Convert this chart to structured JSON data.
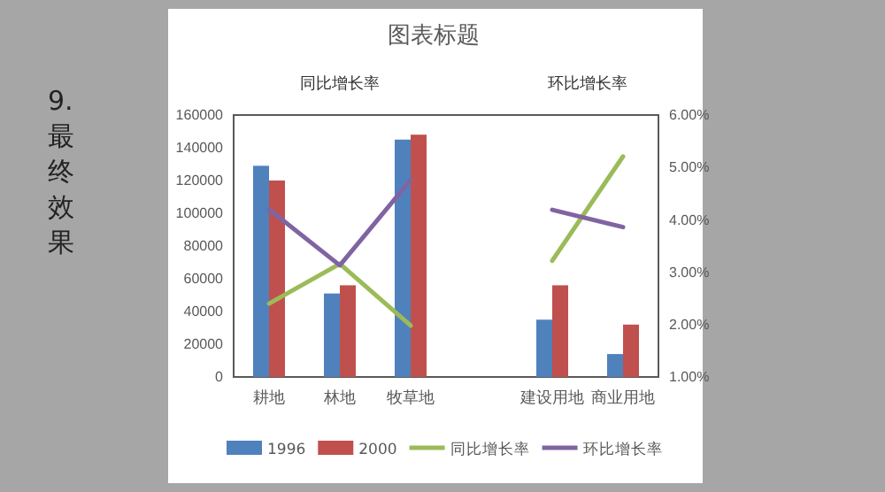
{
  "chart_data": {
    "type": "bar",
    "title": "图表标题",
    "categories": [
      "耕地",
      "林地",
      "牧草地",
      null,
      "建设用地",
      "商业用地"
    ],
    "series": [
      {
        "name": "1996",
        "color": "#4f81bd",
        "values": [
          129000,
          51000,
          145000,
          null,
          35000,
          14000
        ]
      },
      {
        "name": "2000",
        "color": "#c0504d",
        "values": [
          120000,
          56000,
          148000,
          null,
          56000,
          32000
        ]
      },
      {
        "name": "同比增长率",
        "type": "line",
        "axis": "y2",
        "color": "#9bbb59",
        "values": [
          2.4,
          3.16,
          1.98,
          null,
          3.22,
          5.21
        ]
      },
      {
        "name": "环比增长率",
        "type": "line",
        "axis": "y2",
        "color": "#8064a2",
        "values": [
          4.2,
          3.13,
          4.76,
          null,
          4.19,
          3.86
        ]
      }
    ],
    "ylim": [
      0,
      160000
    ],
    "yticks": [
      0,
      20000,
      40000,
      60000,
      80000,
      100000,
      120000,
      140000,
      160000
    ],
    "y2lim": [
      1,
      6
    ],
    "y2ticks": [
      {
        "value": 1,
        "label": "1.00%"
      },
      {
        "value": 2,
        "label": "2.00%"
      },
      {
        "value": 3,
        "label": "3.00%"
      },
      {
        "value": 4,
        "label": "4.00%"
      },
      {
        "value": 5,
        "label": "5.00%"
      },
      {
        "value": 6,
        "label": "6.00%"
      }
    ],
    "annotations": [
      "同比增长率",
      "环比增长率",
      "9. 最终效果"
    ],
    "legend": "bottom",
    "grid": false
  }
}
